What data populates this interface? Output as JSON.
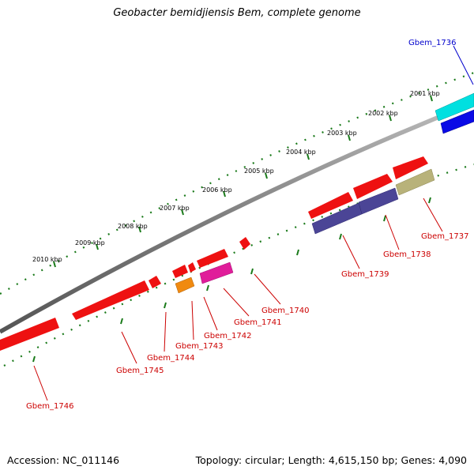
{
  "title": "Geobacter bemidjiensis Bem, complete genome",
  "footer": {
    "accession": "Accession: NC_011146",
    "summary": "Topology: circular; Length: 4,615,150 bp; Genes: 4,090"
  },
  "colors": {
    "backbone": "#7f7f7f",
    "tick_ring": "#1a7a1a",
    "label_red": "#cc0000",
    "label_blue": "#0000cc"
  },
  "kbp_labels": [
    "2001 kbp",
    "2002 kbp",
    "2003 kbp",
    "2004 kbp",
    "2005 kbp",
    "2006 kbp",
    "2007 kbp",
    "2008 kbp",
    "2009 kbp",
    "2010 kbp"
  ],
  "genes": [
    {
      "name": "Gbem_1736",
      "color": "#00e5e5",
      "label_color": "#0000cc"
    },
    {
      "name": "Gbem_1737",
      "color": "#b8b27a",
      "label_color": "#cc0000"
    },
    {
      "name": "Gbem_1738",
      "color": "#4b4596",
      "label_color": "#cc0000"
    },
    {
      "name": "Gbem_1739",
      "color": "#4b4596",
      "label_color": "#cc0000"
    },
    {
      "name": "Gbem_1740",
      "color": "#ee1111",
      "label_color": "#cc0000"
    },
    {
      "name": "Gbem_1741",
      "color": "#ee1111",
      "label_color": "#cc0000"
    },
    {
      "name": "Gbem_1742",
      "color": "#e01d9a",
      "label_color": "#cc0000"
    },
    {
      "name": "Gbem_1743",
      "color": "#f08a10",
      "label_color": "#cc0000"
    },
    {
      "name": "Gbem_1744",
      "color": "#ee1111",
      "label_color": "#cc0000"
    },
    {
      "name": "Gbem_1745",
      "color": "#ee1111",
      "label_color": "#cc0000"
    },
    {
      "name": "Gbem_1746",
      "color": "#ee1111",
      "label_color": "#cc0000"
    }
  ]
}
